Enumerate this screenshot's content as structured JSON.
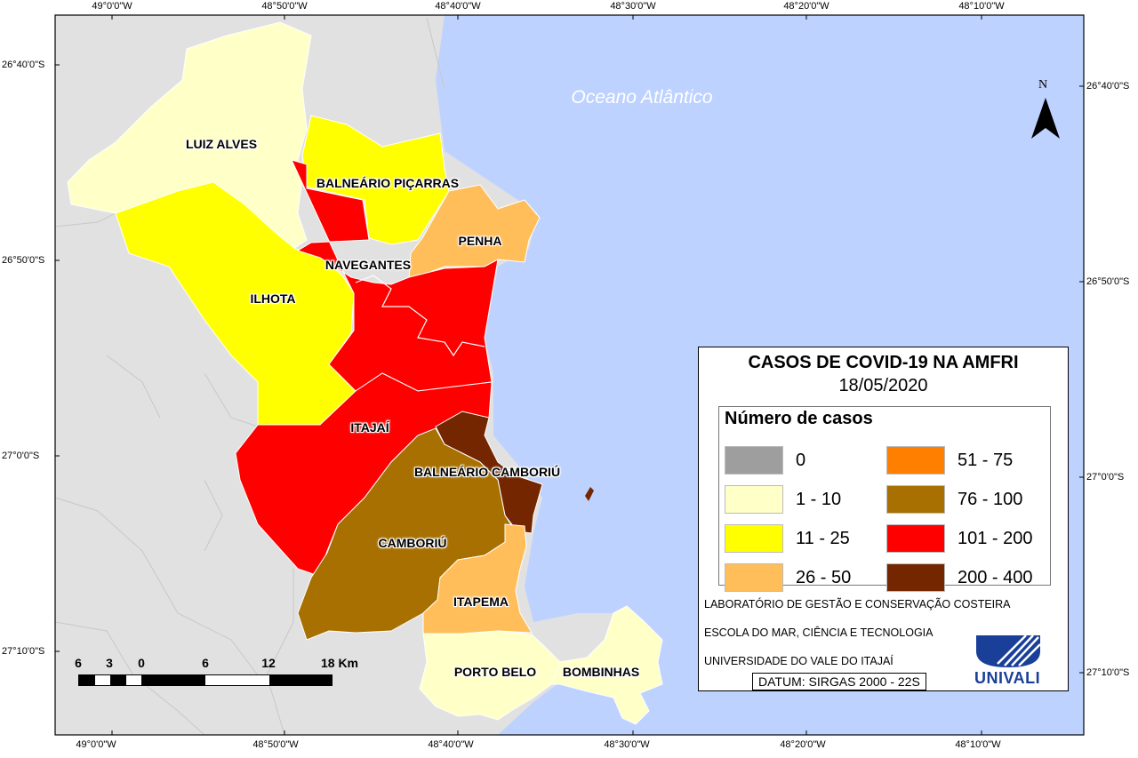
{
  "coordinates": {
    "top": [
      "49°0'0\"W",
      "48°50'0\"W",
      "48°40'0\"W",
      "48°30'0\"W",
      "48°20'0\"W",
      "48°10'0\"W"
    ],
    "bottom": [
      "49°0'0\"W",
      "48°50'0\"W",
      "48°40'0\"W",
      "48°30'0\"W",
      "48°20'0\"W",
      "48°10'0\"W"
    ],
    "left": [
      "26°40'0\"S",
      "26°50'0\"S",
      "27°0'0\"S",
      "27°10'0\"S"
    ],
    "right": [
      "26°40'0\"S",
      "26°50'0\"S",
      "27°0'0\"S",
      "27°10'0\"S"
    ]
  },
  "ocean_label": "Oceano Atlântico",
  "north_label": "N",
  "municipalities": {
    "luiz_alves": "LUIZ ALVES",
    "balneario_picarras": "BALNEÁRIO PIÇARRAS",
    "penha": "PENHA",
    "navegantes": "NAVEGANTES",
    "ilhota": "ILHOTA",
    "itajai": "ITAJAÍ",
    "balneario_camboriu": "BALNEÁRIO CAMBORIÚ",
    "camboriu": "CAMBORIÚ",
    "itapema": "ITAPEMA",
    "porto_belo": "PORTO BELO",
    "bombinhas": "BOMBINHAS"
  },
  "scale": {
    "labels": [
      "6",
      "3",
      "0",
      "6",
      "12",
      "18 Km"
    ]
  },
  "legend": {
    "title": "CASOS DE COVID-19 NA AMFRI",
    "date": "18/05/2020",
    "subtitle": "Número de casos",
    "items": [
      {
        "label": "0",
        "color": "#9e9e9e"
      },
      {
        "label": "1 - 10",
        "color": "#ffffc8"
      },
      {
        "label": "11 - 25",
        "color": "#ffff00"
      },
      {
        "label": "26 - 50",
        "color": "#ffbe5a"
      },
      {
        "label": "51 - 75",
        "color": "#ff7f00"
      },
      {
        "label": "76 - 100",
        "color": "#a87000"
      },
      {
        "label": "101 - 200",
        "color": "#ff0000"
      },
      {
        "label": "200 - 400",
        "color": "#732600"
      }
    ]
  },
  "credits": {
    "lab": "LABORATÓRIO DE GESTÃO E CONSERVAÇÃO COSTEIRA",
    "school": "ESCOLA DO MAR, CIÊNCIA E TECNOLOGIA",
    "university": "UNIVERSIDADE DO VALE DO ITAJAÍ",
    "datum": "DATUM: SIRGAS 2000 - 22S",
    "logo_text": "UNIVALI"
  },
  "colors": {
    "ocean": "#bed2ff",
    "land_outside": "#e1e1e1",
    "boundary": "#c8c8c8",
    "logo_blue": "#1a3f99"
  }
}
